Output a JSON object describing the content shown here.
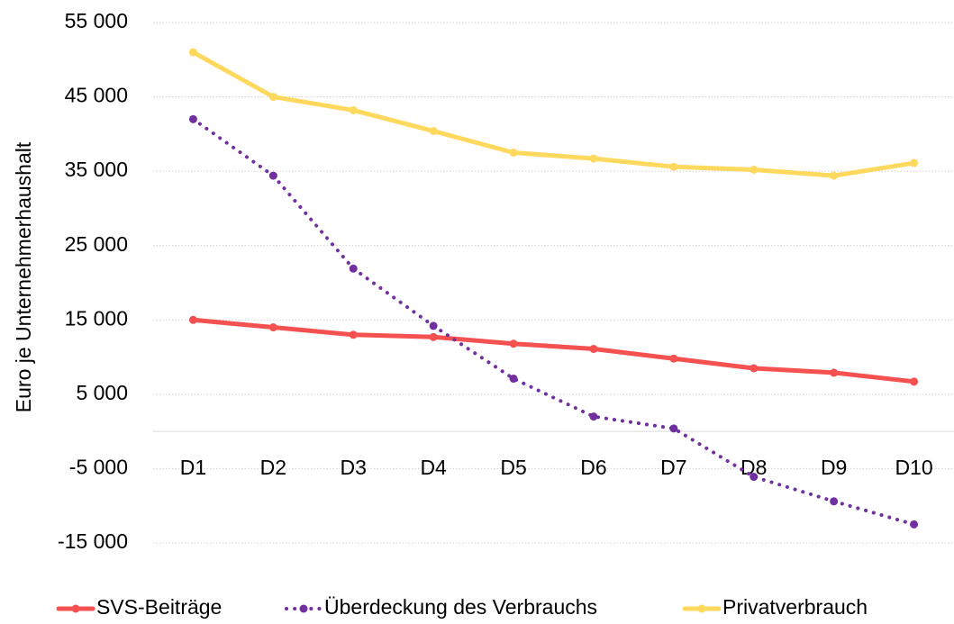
{
  "chart_data": {
    "type": "line",
    "y_label": "Euro je Unternehmerhaushalt",
    "categories": [
      "D1",
      "D2",
      "D3",
      "D4",
      "D5",
      "D6",
      "D7",
      "D8",
      "D9",
      "D10"
    ],
    "series": [
      {
        "name": "SVS-Beiträge",
        "color": "#f55151",
        "dash": "solid",
        "values": [
          15000,
          14000,
          13000,
          12700,
          11800,
          11100,
          9800,
          8500,
          7900,
          6700
        ]
      },
      {
        "name": "Überdeckung des Verbrauchs",
        "color": "#7030a0",
        "dash": "dotted",
        "values": [
          42000,
          34400,
          21900,
          14200,
          7100,
          2000,
          400,
          -6100,
          -9400,
          -12500
        ]
      },
      {
        "name": "Privatverbrauch",
        "color": "#ffd85e",
        "dash": "solid",
        "values": [
          51000,
          45000,
          43200,
          40400,
          37500,
          36700,
          35600,
          35200,
          34400,
          36100
        ]
      }
    ],
    "ylim": [
      -15000,
      55000
    ],
    "yticks": [
      {
        "value": -15000,
        "label": "-15 000"
      },
      {
        "value": -5000,
        "label": "-5 000"
      },
      {
        "value": 5000,
        "label": "5 000"
      },
      {
        "value": 15000,
        "label": "15 000"
      },
      {
        "value": 25000,
        "label": "25 000"
      },
      {
        "value": 35000,
        "label": "35 000"
      },
      {
        "value": 45000,
        "label": "45 000"
      },
      {
        "value": 55000,
        "label": "55 000"
      }
    ],
    "grid": true,
    "legend": "bottom"
  }
}
